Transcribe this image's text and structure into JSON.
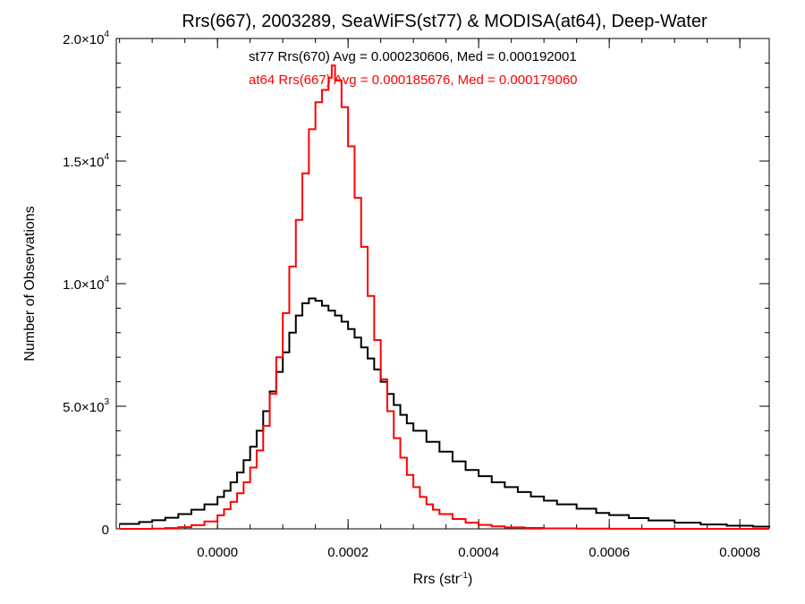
{
  "chart_data": {
    "type": "line",
    "title": "Rrs(667), 2003289, SeaWiFS(st77) & MODISA(at64), Deep-Water",
    "xlabel": {
      "base": "Rrs (str",
      "sup": "-1",
      "tail": ")"
    },
    "ylabel": "Number of Observations",
    "xlim": [
      -0.000155,
      0.000845
    ],
    "ylim": [
      0,
      20000
    ],
    "x_ticks": [
      {
        "value": 0.0,
        "label": "0.0000"
      },
      {
        "value": 0.0002,
        "label": "0.0002"
      },
      {
        "value": 0.0004,
        "label": "0.0004"
      },
      {
        "value": 0.0006,
        "label": "0.0006"
      },
      {
        "value": 0.0008,
        "label": "0.0008"
      }
    ],
    "y_ticks": [
      {
        "value": 0,
        "mant": "0",
        "exp": ""
      },
      {
        "value": 5000,
        "mant": "5.0×10",
        "exp": "3"
      },
      {
        "value": 10000,
        "mant": "1.0×10",
        "exp": "4"
      },
      {
        "value": 15000,
        "mant": "1.5×10",
        "exp": "4"
      },
      {
        "value": 20000,
        "mant": "2.0×10",
        "exp": "4"
      }
    ],
    "annotations": [
      {
        "text": "st77 Rrs(670) Avg = 0.000230606, Med = 0.000192001",
        "color": "#000000"
      },
      {
        "text": "at64 Rrs(667) Avg = 0.000185676, Med = 0.000179060",
        "color": "#ff0000"
      }
    ],
    "series": [
      {
        "color": "#000000",
        "step": "histogram",
        "x": [
          -0.00015,
          -0.00012,
          -0.0001,
          -8e-05,
          -6e-05,
          -4e-05,
          -2e-05,
          0.0,
          1e-05,
          2e-05,
          3e-05,
          4e-05,
          5e-05,
          6e-05,
          7e-05,
          8e-05,
          9e-05,
          0.0001,
          0.00011,
          0.00012,
          0.00013,
          0.00014,
          0.00015,
          0.00016,
          0.00017,
          0.00018,
          0.00019,
          0.0002,
          0.00021,
          0.00022,
          0.00023,
          0.00024,
          0.00025,
          0.00026,
          0.00027,
          0.00028,
          0.00029,
          0.0003,
          0.00032,
          0.00034,
          0.00036,
          0.00038,
          0.0004,
          0.00042,
          0.00044,
          0.00046,
          0.00048,
          0.0005,
          0.00052,
          0.00055,
          0.00058,
          0.0006,
          0.00063,
          0.00066,
          0.0007,
          0.00074,
          0.00078,
          0.00082,
          0.000845
        ],
        "y": [
          200,
          280,
          350,
          450,
          600,
          780,
          1000,
          1300,
          1550,
          1900,
          2300,
          2800,
          3350,
          4000,
          4800,
          5600,
          6400,
          7200,
          8000,
          8700,
          9200,
          9400,
          9300,
          9100,
          8900,
          8700,
          8450,
          8150,
          7800,
          7400,
          6950,
          6500,
          6000,
          5500,
          5050,
          4650,
          4300,
          4000,
          3550,
          3150,
          2750,
          2400,
          2150,
          1900,
          1700,
          1500,
          1320,
          1150,
          1000,
          820,
          650,
          560,
          440,
          340,
          250,
          180,
          130,
          90,
          60
        ]
      },
      {
        "color": "#ff0000",
        "step": "histogram",
        "x": [
          -0.00015,
          -0.00012,
          -0.0001,
          -8e-05,
          -6e-05,
          -4e-05,
          -2e-05,
          0.0,
          1e-05,
          2e-05,
          3e-05,
          4e-05,
          5e-05,
          6e-05,
          7e-05,
          8e-05,
          9e-05,
          0.0001,
          0.00011,
          0.00012,
          0.00013,
          0.00014,
          0.00015,
          0.00016,
          0.00017,
          0.000175,
          0.00018,
          0.00019,
          0.0002,
          0.00021,
          0.00022,
          0.00023,
          0.00024,
          0.00025,
          0.00026,
          0.00027,
          0.00028,
          0.00029,
          0.0003,
          0.00031,
          0.00032,
          0.00033,
          0.00034,
          0.00036,
          0.00038,
          0.0004,
          0.00042,
          0.00044,
          0.00047,
          0.0005,
          0.00055,
          0.0006,
          0.00065,
          0.0007,
          0.00075,
          0.0008,
          0.000845
        ],
        "y": [
          0,
          0,
          10,
          30,
          70,
          150,
          300,
          550,
          800,
          1100,
          1450,
          1900,
          2500,
          3200,
          4200,
          5500,
          7000,
          8800,
          10700,
          12600,
          14500,
          16300,
          17400,
          17900,
          18400,
          18900,
          18300,
          17200,
          15600,
          13500,
          11500,
          9500,
          7700,
          6100,
          4800,
          3700,
          2900,
          2200,
          1700,
          1300,
          1000,
          780,
          600,
          400,
          250,
          160,
          100,
          60,
          35,
          20,
          10,
          5,
          0,
          0,
          0,
          0,
          0
        ]
      }
    ]
  }
}
